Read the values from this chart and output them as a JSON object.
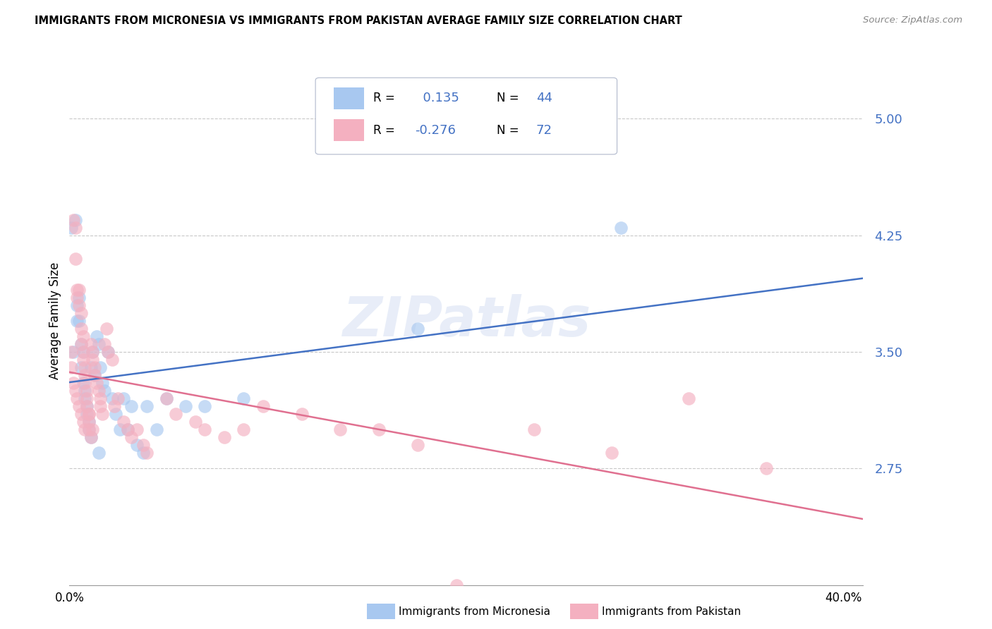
{
  "title": "IMMIGRANTS FROM MICRONESIA VS IMMIGRANTS FROM PAKISTAN AVERAGE FAMILY SIZE CORRELATION CHART",
  "source": "Source: ZipAtlas.com",
  "ylabel": "Average Family Size",
  "watermark": "ZIPatlas",
  "yticks": [
    2.75,
    3.5,
    4.25,
    5.0
  ],
  "ylim": [
    2.0,
    5.4
  ],
  "xlim": [
    0.0,
    0.41
  ],
  "blue_color": "#a8c8f0",
  "pink_color": "#f4b0c0",
  "blue_line_color": "#4472c4",
  "pink_line_color": "#e07090",
  "tick_color": "#4472c4",
  "R_blue": "0.135",
  "N_blue": "44",
  "R_pink": "-0.276",
  "N_pink": "72",
  "blue_scatter_x": [
    0.001,
    0.002,
    0.003,
    0.004,
    0.005,
    0.005,
    0.006,
    0.006,
    0.007,
    0.007,
    0.008,
    0.008,
    0.009,
    0.009,
    0.01,
    0.01,
    0.011,
    0.011,
    0.012,
    0.013,
    0.014,
    0.015,
    0.016,
    0.017,
    0.018,
    0.02,
    0.022,
    0.024,
    0.026,
    0.028,
    0.03,
    0.032,
    0.035,
    0.038,
    0.04,
    0.045,
    0.05,
    0.06,
    0.07,
    0.09,
    0.18,
    0.285,
    0.004,
    0.015
  ],
  "blue_scatter_y": [
    4.3,
    3.5,
    4.35,
    3.8,
    3.85,
    3.7,
    3.55,
    3.4,
    3.5,
    3.3,
    3.25,
    3.2,
    3.15,
    3.1,
    3.05,
    3.0,
    2.95,
    3.4,
    3.5,
    3.35,
    3.6,
    3.55,
    3.4,
    3.3,
    3.25,
    3.5,
    3.2,
    3.1,
    3.0,
    3.2,
    3.0,
    3.15,
    2.9,
    2.85,
    3.15,
    3.0,
    3.2,
    3.15,
    3.15,
    3.2,
    3.65,
    4.3,
    3.7,
    2.85
  ],
  "pink_scatter_x": [
    0.001,
    0.002,
    0.003,
    0.003,
    0.004,
    0.004,
    0.005,
    0.005,
    0.006,
    0.006,
    0.006,
    0.007,
    0.007,
    0.007,
    0.008,
    0.008,
    0.008,
    0.009,
    0.009,
    0.009,
    0.01,
    0.01,
    0.01,
    0.011,
    0.011,
    0.012,
    0.012,
    0.013,
    0.013,
    0.014,
    0.015,
    0.016,
    0.016,
    0.017,
    0.018,
    0.019,
    0.02,
    0.022,
    0.023,
    0.025,
    0.028,
    0.03,
    0.032,
    0.035,
    0.038,
    0.04,
    0.05,
    0.055,
    0.065,
    0.07,
    0.08,
    0.09,
    0.1,
    0.12,
    0.14,
    0.16,
    0.18,
    0.2,
    0.24,
    0.28,
    0.32,
    0.36,
    0.001,
    0.002,
    0.003,
    0.004,
    0.005,
    0.006,
    0.007,
    0.008,
    0.01,
    0.012
  ],
  "pink_scatter_y": [
    3.5,
    4.35,
    4.3,
    4.1,
    3.9,
    3.85,
    3.9,
    3.8,
    3.75,
    3.65,
    3.55,
    3.6,
    3.5,
    3.45,
    3.4,
    3.35,
    3.3,
    3.25,
    3.2,
    3.15,
    3.1,
    3.05,
    3.0,
    2.95,
    3.55,
    3.5,
    3.45,
    3.4,
    3.35,
    3.3,
    3.25,
    3.2,
    3.15,
    3.1,
    3.55,
    3.65,
    3.5,
    3.45,
    3.15,
    3.2,
    3.05,
    3.0,
    2.95,
    3.0,
    2.9,
    2.85,
    3.2,
    3.1,
    3.05,
    3.0,
    2.95,
    3.0,
    3.15,
    3.1,
    3.0,
    3.0,
    2.9,
    2.0,
    3.0,
    2.85,
    3.2,
    2.75,
    3.4,
    3.3,
    3.25,
    3.2,
    3.15,
    3.1,
    3.05,
    3.0,
    3.1,
    3.0
  ]
}
